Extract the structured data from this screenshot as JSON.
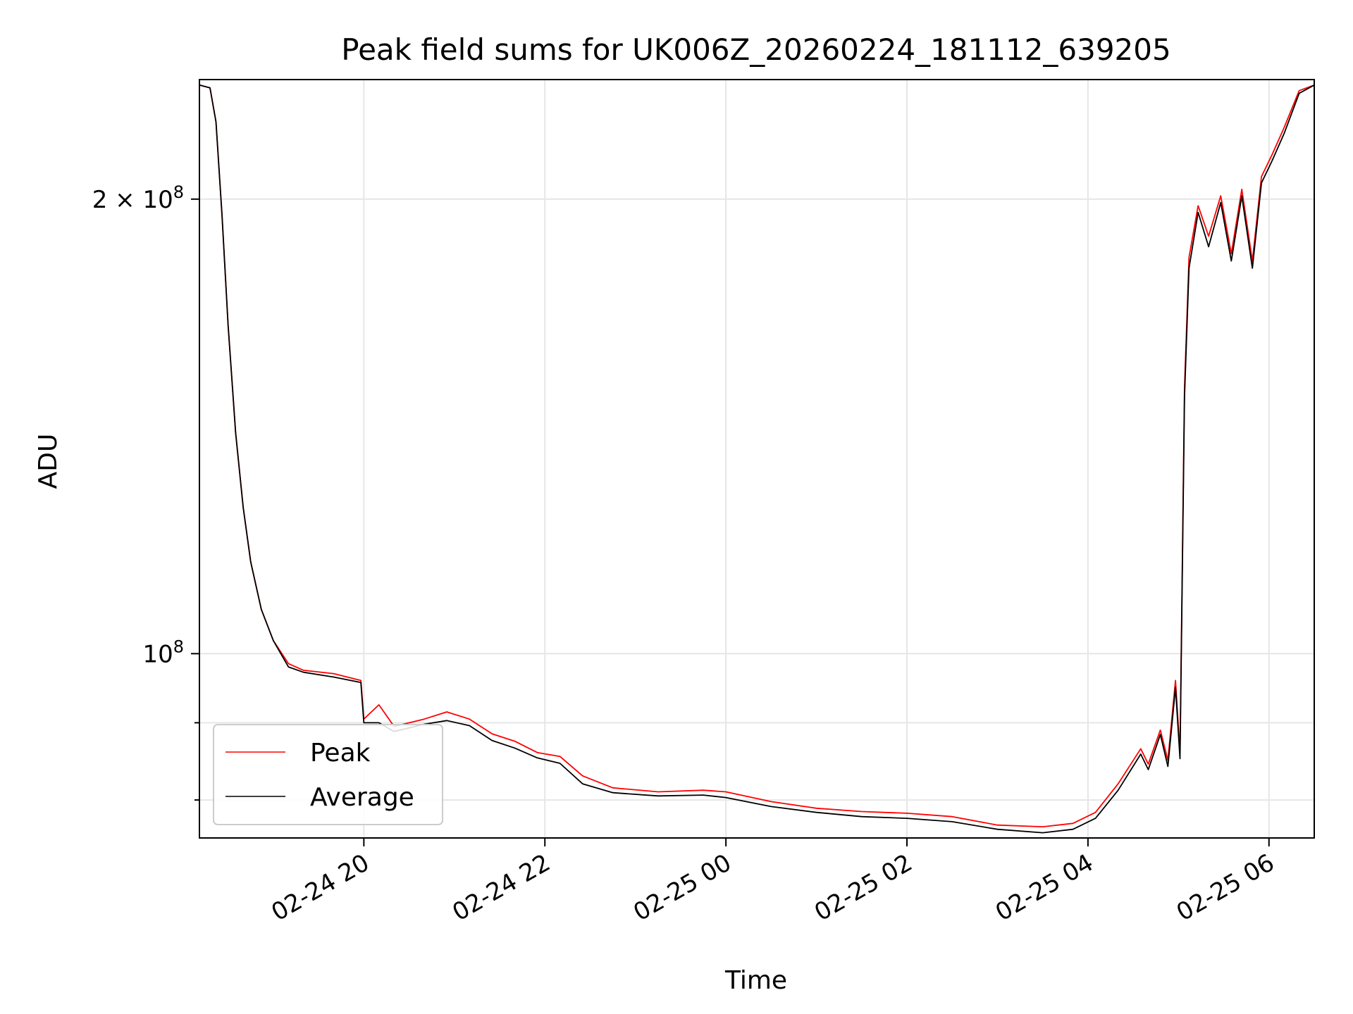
{
  "chart_data": {
    "type": "line",
    "title": "Peak field sums for UK006Z_20260224_181112_639205",
    "xlabel": "Time",
    "ylabel": "ADU",
    "y_scale": "log",
    "x_range": [
      "02-24 18:11",
      "02-25 06:30"
    ],
    "ylim": [
      75500000,
      240000000
    ],
    "x_ticks": [
      {
        "t": "02-24 20:00",
        "label": "02-24 20"
      },
      {
        "t": "02-24 22:00",
        "label": "02-24 22"
      },
      {
        "t": "02-25 00:00",
        "label": "02-25 00"
      },
      {
        "t": "02-25 02:00",
        "label": "02-25 02"
      },
      {
        "t": "02-25 04:00",
        "label": "02-25 04"
      },
      {
        "t": "02-25 06:00",
        "label": "02-25 06"
      }
    ],
    "y_ticks_major": [
      {
        "v": 100000000,
        "base": "10",
        "exp": "8",
        "mantissa": ""
      },
      {
        "v": 200000000,
        "base": "10",
        "exp": "8",
        "mantissa": "2"
      }
    ],
    "y_ticks_minor": [
      80000000,
      90000000
    ],
    "grid": true,
    "legend_position": "lower-left",
    "series": [
      {
        "name": "Peak",
        "color": "#ff0000",
        "points": [
          [
            "02-24 18:11",
            238000000
          ],
          [
            "02-24 18:18",
            237000000
          ],
          [
            "02-24 18:22",
            225000000
          ],
          [
            "02-24 18:26",
            195000000
          ],
          [
            "02-24 18:30",
            165000000
          ],
          [
            "02-24 18:35",
            140000000
          ],
          [
            "02-24 18:40",
            125000000
          ],
          [
            "02-24 18:45",
            115000000
          ],
          [
            "02-24 18:52",
            107000000
          ],
          [
            "02-24 19:00",
            102000000
          ],
          [
            "02-24 19:10",
            98500000
          ],
          [
            "02-24 19:20",
            97500000
          ],
          [
            "02-24 19:40",
            97000000
          ],
          [
            "02-24 19:58",
            96000000
          ],
          [
            "02-24 20:00",
            90500000
          ],
          [
            "02-24 20:10",
            92500000
          ],
          [
            "02-24 20:20",
            89500000
          ],
          [
            "02-24 20:40",
            90500000
          ],
          [
            "02-24 20:55",
            91500000
          ],
          [
            "02-24 21:10",
            90500000
          ],
          [
            "02-24 21:25",
            88500000
          ],
          [
            "02-24 21:40",
            87500000
          ],
          [
            "02-24 21:55",
            86000000
          ],
          [
            "02-24 22:10",
            85500000
          ],
          [
            "02-24 22:25",
            83000000
          ],
          [
            "02-24 22:45",
            81500000
          ],
          [
            "02-24 23:15",
            81000000
          ],
          [
            "02-24 23:45",
            81200000
          ],
          [
            "02-25 00:00",
            81000000
          ],
          [
            "02-25 00:30",
            79800000
          ],
          [
            "02-25 01:00",
            79000000
          ],
          [
            "02-25 01:30",
            78600000
          ],
          [
            "02-25 02:00",
            78400000
          ],
          [
            "02-25 02:30",
            78000000
          ],
          [
            "02-25 03:00",
            77000000
          ],
          [
            "02-25 03:30",
            76800000
          ],
          [
            "02-25 03:50",
            77200000
          ],
          [
            "02-25 04:05",
            78500000
          ],
          [
            "02-25 04:20",
            82000000
          ],
          [
            "02-25 04:35",
            86500000
          ],
          [
            "02-25 04:40",
            84500000
          ],
          [
            "02-25 04:48",
            89000000
          ],
          [
            "02-25 04:53",
            85000000
          ],
          [
            "02-25 04:58",
            96000000
          ],
          [
            "02-25 05:01",
            86000000
          ],
          [
            "02-25 05:04",
            150000000
          ],
          [
            "02-25 05:07",
            183000000
          ],
          [
            "02-25 05:13",
            198000000
          ],
          [
            "02-25 05:20",
            189000000
          ],
          [
            "02-25 05:28",
            201000000
          ],
          [
            "02-25 05:35",
            184000000
          ],
          [
            "02-25 05:42",
            203000000
          ],
          [
            "02-25 05:49",
            182000000
          ],
          [
            "02-25 05:55",
            207000000
          ],
          [
            "02-25 06:02",
            214000000
          ],
          [
            "02-25 06:10",
            223000000
          ],
          [
            "02-25 06:20",
            236000000
          ],
          [
            "02-25 06:30",
            238000000
          ]
        ]
      },
      {
        "name": "Average",
        "color": "#000000",
        "points": [
          [
            "02-24 18:11",
            238000000
          ],
          [
            "02-24 18:18",
            237000000
          ],
          [
            "02-24 18:22",
            225000000
          ],
          [
            "02-24 18:26",
            195000000
          ],
          [
            "02-24 18:30",
            165000000
          ],
          [
            "02-24 18:35",
            140000000
          ],
          [
            "02-24 18:40",
            125000000
          ],
          [
            "02-24 18:45",
            115000000
          ],
          [
            "02-24 18:52",
            107000000
          ],
          [
            "02-24 19:00",
            102000000
          ],
          [
            "02-24 19:10",
            98000000
          ],
          [
            "02-24 19:20",
            97200000
          ],
          [
            "02-24 19:40",
            96500000
          ],
          [
            "02-24 19:58",
            95700000
          ],
          [
            "02-24 20:00",
            90000000
          ],
          [
            "02-24 20:10",
            90000000
          ],
          [
            "02-24 20:20",
            88800000
          ],
          [
            "02-24 20:40",
            89800000
          ],
          [
            "02-24 20:55",
            90300000
          ],
          [
            "02-24 21:10",
            89600000
          ],
          [
            "02-24 21:25",
            87600000
          ],
          [
            "02-24 21:40",
            86600000
          ],
          [
            "02-24 21:55",
            85300000
          ],
          [
            "02-24 22:10",
            84600000
          ],
          [
            "02-24 22:25",
            82000000
          ],
          [
            "02-24 22:45",
            80900000
          ],
          [
            "02-24 23:15",
            80500000
          ],
          [
            "02-24 23:45",
            80600000
          ],
          [
            "02-25 00:00",
            80300000
          ],
          [
            "02-25 00:30",
            79200000
          ],
          [
            "02-25 01:00",
            78500000
          ],
          [
            "02-25 01:30",
            78000000
          ],
          [
            "02-25 02:00",
            77800000
          ],
          [
            "02-25 02:30",
            77400000
          ],
          [
            "02-25 03:00",
            76500000
          ],
          [
            "02-25 03:30",
            76100000
          ],
          [
            "02-25 03:50",
            76500000
          ],
          [
            "02-25 04:05",
            77800000
          ],
          [
            "02-25 04:20",
            81200000
          ],
          [
            "02-25 04:35",
            85800000
          ],
          [
            "02-25 04:40",
            83800000
          ],
          [
            "02-25 04:48",
            88400000
          ],
          [
            "02-25 04:53",
            84200000
          ],
          [
            "02-25 04:58",
            95000000
          ],
          [
            "02-25 05:01",
            85200000
          ],
          [
            "02-25 05:04",
            148000000
          ],
          [
            "02-25 05:07",
            180000000
          ],
          [
            "02-25 05:13",
            196000000
          ],
          [
            "02-25 05:20",
            186000000
          ],
          [
            "02-25 05:28",
            199000000
          ],
          [
            "02-25 05:35",
            182000000
          ],
          [
            "02-25 05:42",
            201000000
          ],
          [
            "02-25 05:49",
            180000000
          ],
          [
            "02-25 05:55",
            205000000
          ],
          [
            "02-25 06:02",
            212000000
          ],
          [
            "02-25 06:10",
            221000000
          ],
          [
            "02-25 06:20",
            235000000
          ],
          [
            "02-25 06:30",
            238000000
          ]
        ]
      }
    ]
  }
}
